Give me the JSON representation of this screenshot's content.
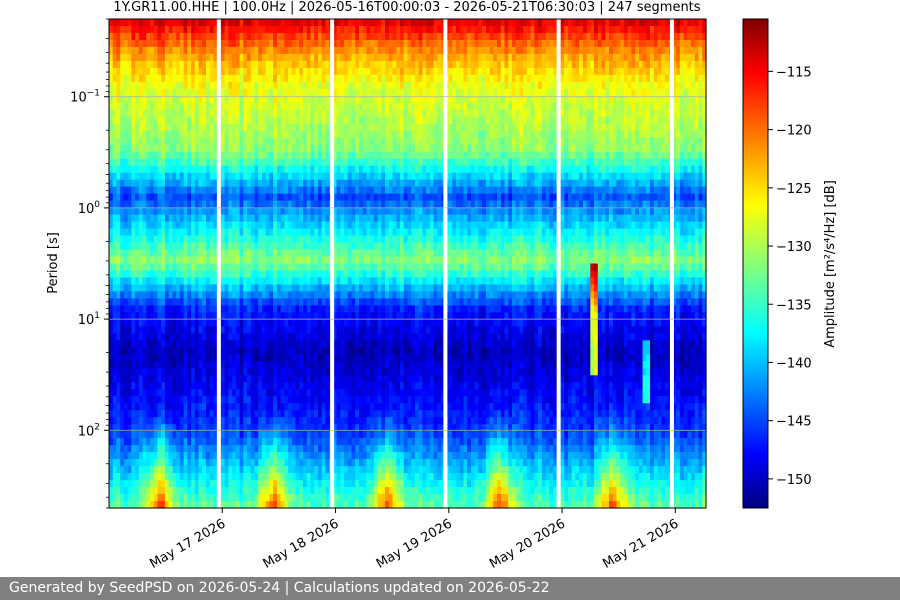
{
  "chart_data": {
    "type": "heatmap",
    "title": "1Y.GR11.00.HHE | 100.0Hz | 2026-05-16T00:00:03 - 2026-05-21T06:30:03 | 247 segments",
    "xlabel": "",
    "ylabel": "Period [s]",
    "colorbar_label": "Amplitude [m²/s⁴/Hz] [dB]",
    "colormap": "jet",
    "x_range": [
      "2026-05-16T00:00:03",
      "2026-05-21T06:30:03"
    ],
    "x_ticks": [
      "May 17 2026",
      "May 18 2026",
      "May 19 2026",
      "May 20 2026",
      "May 21 2026"
    ],
    "y_scale": "log",
    "y_inverted": true,
    "y_range_s": [
      0.02,
      500
    ],
    "y_ticks": [
      {
        "base": "10",
        "exp": "−1"
      },
      {
        "base": "10",
        "exp": "0"
      },
      {
        "base": "10",
        "exp": "1"
      },
      {
        "base": "10",
        "exp": "2"
      }
    ],
    "color_range_db": [
      -152.5,
      -110.5
    ],
    "colorbar_ticks": [
      "−115",
      "−120",
      "−125",
      "−130",
      "−135",
      "−140",
      "−145",
      "−150"
    ],
    "grid": "horizontal at decades",
    "data_gaps_days": [
      0.97,
      1.97,
      2.97,
      3.97,
      4.97
    ],
    "segments": 247,
    "heatmap_profile": [
      {
        "period_s": 0.02,
        "db": -114
      },
      {
        "period_s": 0.04,
        "db": -122
      },
      {
        "period_s": 0.08,
        "db": -127
      },
      {
        "period_s": 0.3,
        "db": -131
      },
      {
        "period_s": 0.8,
        "db": -144
      },
      {
        "period_s": 3,
        "db": -131
      },
      {
        "period_s": 8,
        "db": -146
      },
      {
        "period_s": 20,
        "db": -150
      },
      {
        "period_s": 100,
        "db": -145
      },
      {
        "period_s": 500,
        "db": -133
      }
    ]
  },
  "footer": {
    "text": "Generated by SeedPSD on 2026-05-24 | Calculations updated on 2026-05-22"
  }
}
